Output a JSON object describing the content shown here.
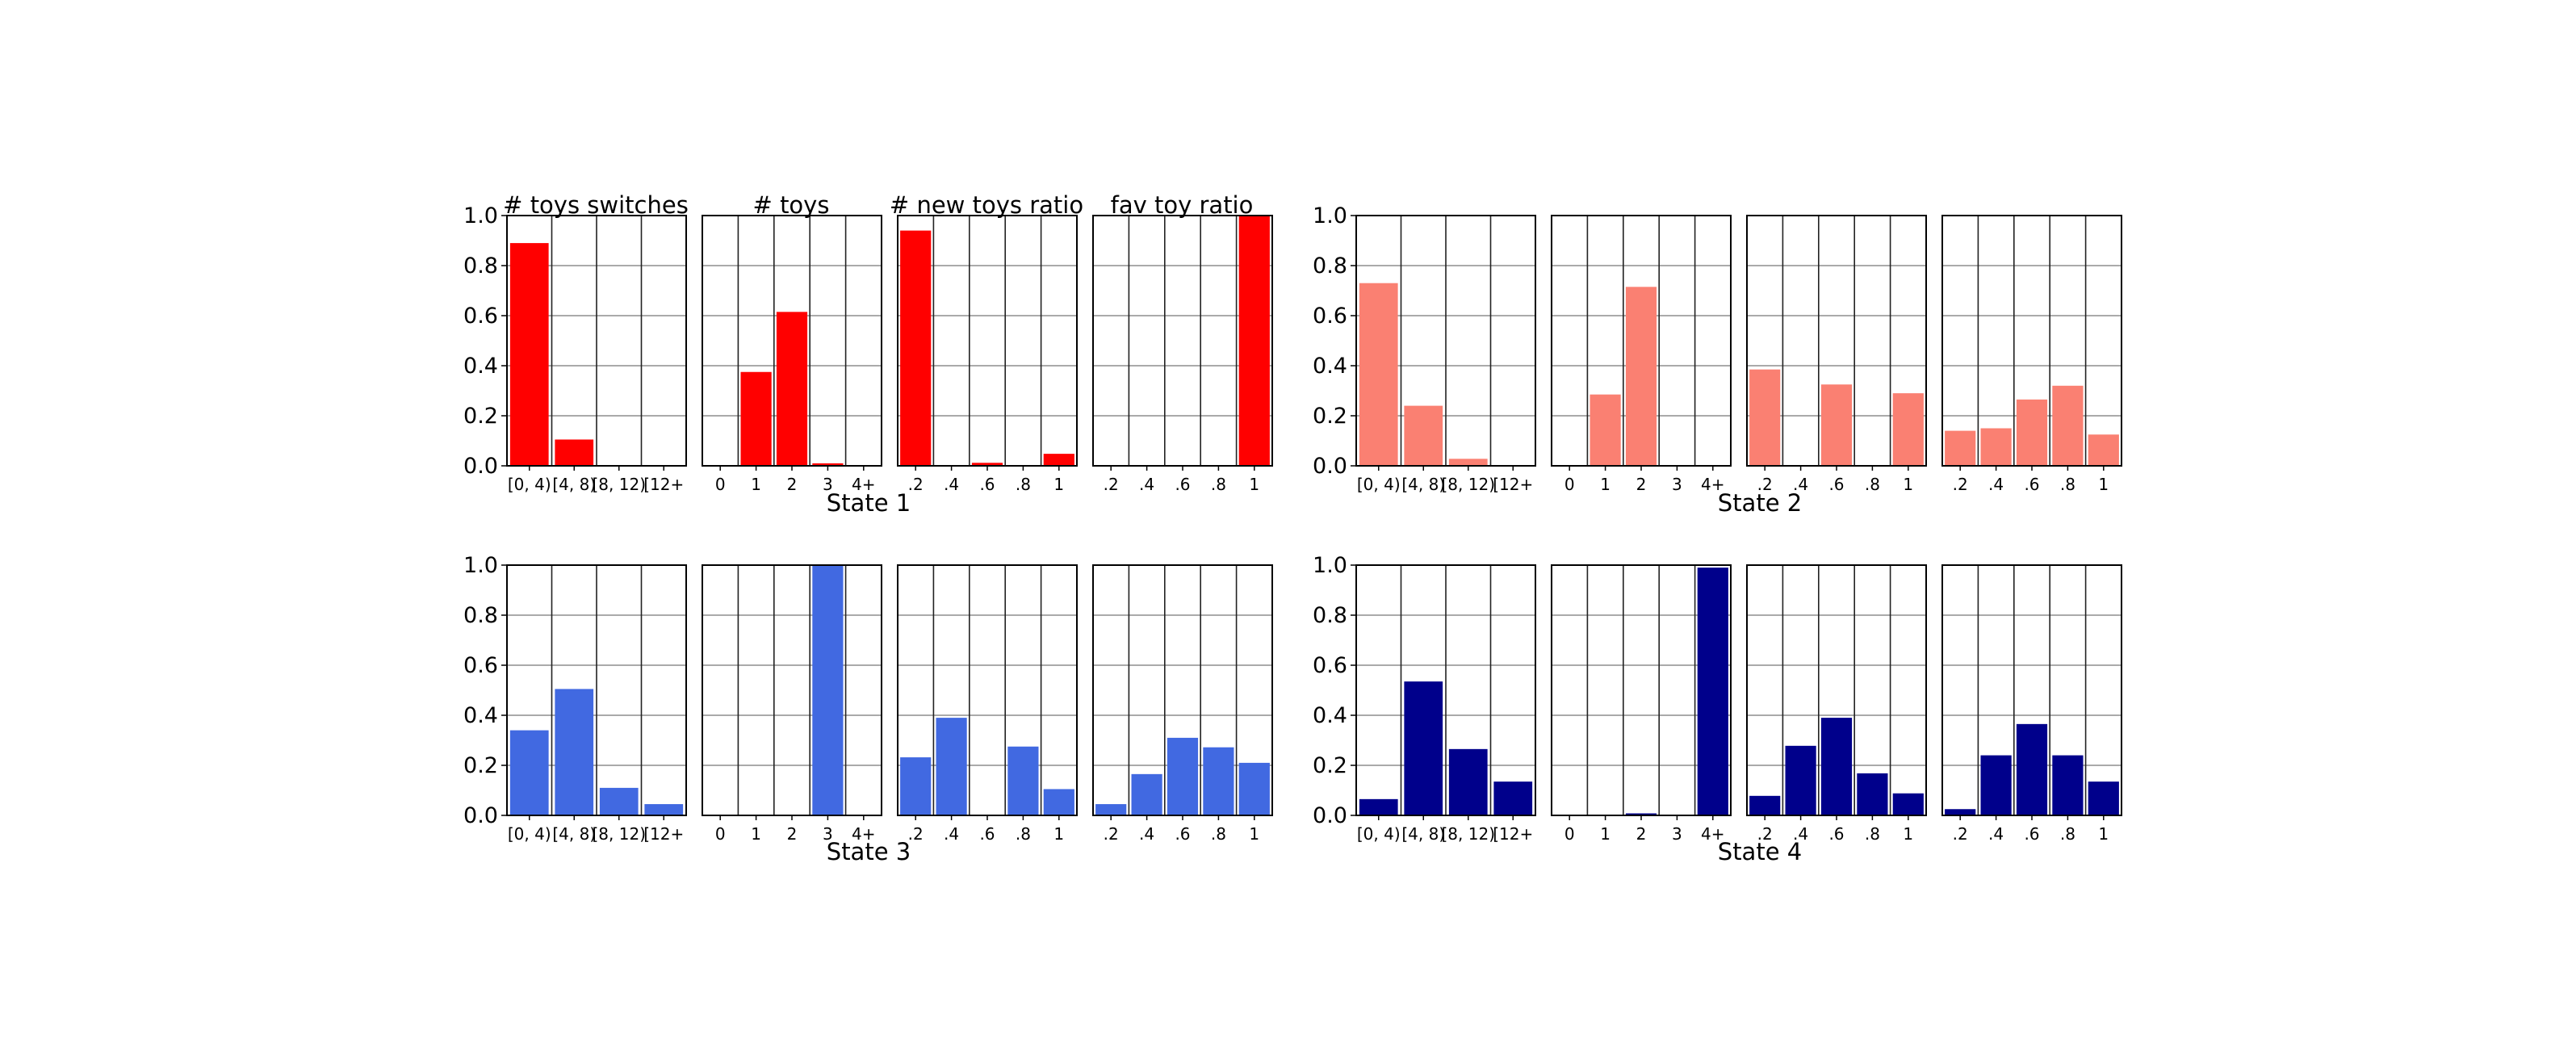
{
  "figure": {
    "columns": [
      "# toys switches",
      "# toys",
      "# new toys ratio",
      "fav toy ratio"
    ],
    "states": [
      {
        "label": "State 1",
        "color": "#ff0000"
      },
      {
        "label": "State 2",
        "color": "#fa8072"
      },
      {
        "label": "State 3",
        "color": "#4169e1"
      },
      {
        "label": "State 4",
        "color": "#00008b"
      }
    ],
    "y_ticks": [
      "0.0",
      "0.2",
      "0.4",
      "0.6",
      "0.8",
      "1.0"
    ]
  },
  "chart_data": [
    {
      "type": "bar",
      "title": "# toys switches",
      "state": "State 1",
      "categories": [
        "[0, 4)",
        "[4, 8)",
        "[8, 12)",
        "[12+"
      ],
      "values": [
        0.89,
        0.105,
        0,
        0
      ],
      "ylim": [
        0,
        1
      ],
      "grid": true
    },
    {
      "type": "bar",
      "title": "# toys",
      "state": "State 1",
      "categories": [
        "0",
        "1",
        "2",
        "3",
        "4+"
      ],
      "values": [
        0,
        0.375,
        0.615,
        0.01,
        0
      ],
      "ylim": [
        0,
        1
      ],
      "grid": true
    },
    {
      "type": "bar",
      "title": "# new toys ratio",
      "state": "State 1",
      "categories": [
        ".2",
        ".4",
        ".6",
        ".8",
        "1"
      ],
      "values": [
        0.94,
        0,
        0.012,
        0,
        0.048
      ],
      "ylim": [
        0,
        1
      ],
      "grid": true
    },
    {
      "type": "bar",
      "title": "fav toy ratio",
      "state": "State 1",
      "categories": [
        ".2",
        ".4",
        ".6",
        ".8",
        "1"
      ],
      "values": [
        0,
        0,
        0,
        0,
        1.0
      ],
      "ylim": [
        0,
        1
      ],
      "grid": true
    },
    {
      "type": "bar",
      "state": "State 2",
      "categories": [
        "[0, 4)",
        "[4, 8)",
        "[8, 12)",
        "[12+"
      ],
      "values": [
        0.73,
        0.24,
        0.028,
        0
      ],
      "ylim": [
        0,
        1
      ],
      "grid": true
    },
    {
      "type": "bar",
      "state": "State 2",
      "categories": [
        "0",
        "1",
        "2",
        "3",
        "4+"
      ],
      "values": [
        0,
        0.285,
        0.715,
        0,
        0
      ],
      "ylim": [
        0,
        1
      ],
      "grid": true
    },
    {
      "type": "bar",
      "state": "State 2",
      "categories": [
        ".2",
        ".4",
        ".6",
        ".8",
        "1"
      ],
      "values": [
        0.385,
        0,
        0.325,
        0,
        0.29
      ],
      "ylim": [
        0,
        1
      ],
      "grid": true
    },
    {
      "type": "bar",
      "state": "State 2",
      "categories": [
        ".2",
        ".4",
        ".6",
        ".8",
        "1"
      ],
      "values": [
        0.14,
        0.15,
        0.265,
        0.32,
        0.125
      ],
      "ylim": [
        0,
        1
      ],
      "grid": true
    },
    {
      "type": "bar",
      "state": "State 3",
      "categories": [
        "[0, 4)",
        "[4, 8)",
        "[8, 12)",
        "[12+"
      ],
      "values": [
        0.34,
        0.505,
        0.11,
        0.045
      ],
      "ylim": [
        0,
        1
      ],
      "grid": true
    },
    {
      "type": "bar",
      "state": "State 3",
      "categories": [
        "0",
        "1",
        "2",
        "3",
        "4+"
      ],
      "values": [
        0,
        0,
        0,
        1.0,
        0
      ],
      "ylim": [
        0,
        1
      ],
      "grid": true
    },
    {
      "type": "bar",
      "state": "State 3",
      "categories": [
        ".2",
        ".4",
        ".6",
        ".8",
        "1"
      ],
      "values": [
        0.232,
        0.39,
        0,
        0.275,
        0.105
      ],
      "ylim": [
        0,
        1
      ],
      "grid": true
    },
    {
      "type": "bar",
      "state": "State 3",
      "categories": [
        ".2",
        ".4",
        ".6",
        ".8",
        "1"
      ],
      "values": [
        0.045,
        0.165,
        0.31,
        0.272,
        0.21
      ],
      "ylim": [
        0,
        1
      ],
      "grid": true
    },
    {
      "type": "bar",
      "state": "State 4",
      "categories": [
        "[0, 4)",
        "[4, 8)",
        "[8, 12)",
        "[12+"
      ],
      "values": [
        0.065,
        0.535,
        0.265,
        0.135
      ],
      "ylim": [
        0,
        1
      ],
      "grid": true
    },
    {
      "type": "bar",
      "state": "State 4",
      "categories": [
        "0",
        "1",
        "2",
        "3",
        "4+"
      ],
      "values": [
        0,
        0,
        0.008,
        0,
        0.99
      ],
      "ylim": [
        0,
        1
      ],
      "grid": true
    },
    {
      "type": "bar",
      "state": "State 4",
      "categories": [
        ".2",
        ".4",
        ".6",
        ".8",
        "1"
      ],
      "values": [
        0.078,
        0.278,
        0.39,
        0.168,
        0.088
      ],
      "ylim": [
        0,
        1
      ],
      "grid": true
    },
    {
      "type": "bar",
      "state": "State 4",
      "categories": [
        ".2",
        ".4",
        ".6",
        ".8",
        "1"
      ],
      "values": [
        0.025,
        0.24,
        0.365,
        0.24,
        0.135
      ],
      "ylim": [
        0,
        1
      ],
      "grid": true
    }
  ]
}
